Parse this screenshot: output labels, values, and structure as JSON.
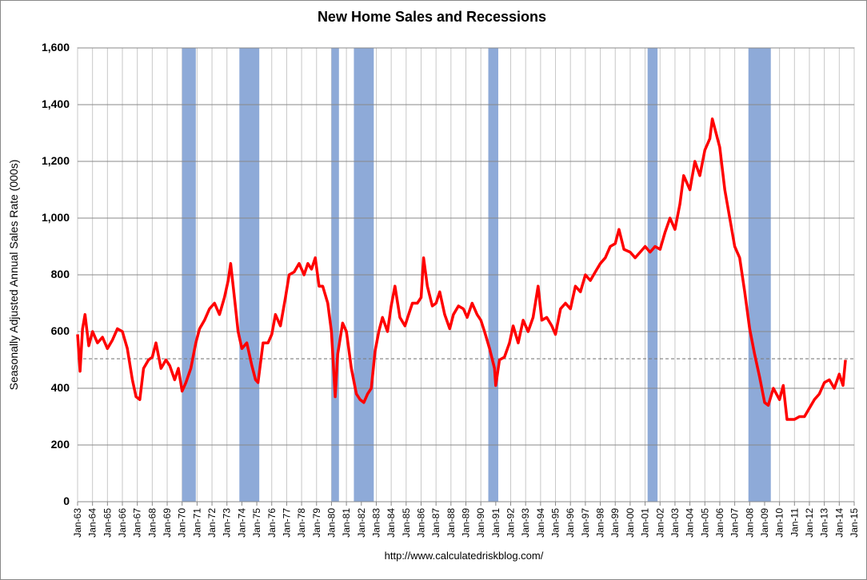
{
  "chart_data": {
    "type": "line",
    "title": "New Home Sales and Recessions",
    "y_label": "Seasonally Adjusted Annual Sales Rate (000s)",
    "source": "http://www.calculatedriskblog.com/",
    "ylim": [
      0,
      1600
    ],
    "yticks": [
      0,
      200,
      400,
      600,
      800,
      {
        "value": 1000,
        "label": "1,000"
      },
      {
        "value": 1200,
        "label": "1,200"
      },
      {
        "value": 1400,
        "label": "1,400"
      },
      {
        "value": 1600,
        "label": "1,600"
      }
    ],
    "xlim": [
      "1963-01",
      "2015-01"
    ],
    "xticks": [
      {
        "value": "1963-01",
        "label": "Jan-63"
      },
      {
        "value": "1964-01",
        "label": "Jan-64"
      },
      {
        "value": "1965-01",
        "label": "Jan-65"
      },
      {
        "value": "1966-01",
        "label": "Jan-66"
      },
      {
        "value": "1967-01",
        "label": "Jan-67"
      },
      {
        "value": "1968-01",
        "label": "Jan-68"
      },
      {
        "value": "1969-01",
        "label": "Jan-69"
      },
      {
        "value": "1970-01",
        "label": "Jan-70"
      },
      {
        "value": "1971-01",
        "label": "Jan-71"
      },
      {
        "value": "1972-01",
        "label": "Jan-72"
      },
      {
        "value": "1973-01",
        "label": "Jan-73"
      },
      {
        "value": "1974-01",
        "label": "Jan-74"
      },
      {
        "value": "1975-01",
        "label": "Jan-75"
      },
      {
        "value": "1976-01",
        "label": "Jan-76"
      },
      {
        "value": "1977-01",
        "label": "Jan-77"
      },
      {
        "value": "1978-01",
        "label": "Jan-78"
      },
      {
        "value": "1979-01",
        "label": "Jan-79"
      },
      {
        "value": "1980-01",
        "label": "Jan-80"
      },
      {
        "value": "1981-01",
        "label": "Jan-81"
      },
      {
        "value": "1982-01",
        "label": "Jan-82"
      },
      {
        "value": "1983-01",
        "label": "Jan-83"
      },
      {
        "value": "1984-01",
        "label": "Jan-84"
      },
      {
        "value": "1985-01",
        "label": "Jan-85"
      },
      {
        "value": "1986-01",
        "label": "Jan-86"
      },
      {
        "value": "1987-01",
        "label": "Jan-87"
      },
      {
        "value": "1988-01",
        "label": "Jan-88"
      },
      {
        "value": "1989-01",
        "label": "Jan-89"
      },
      {
        "value": "1990-01",
        "label": "Jan-90"
      },
      {
        "value": "1991-01",
        "label": "Jan-91"
      },
      {
        "value": "1992-01",
        "label": "Jan-92"
      },
      {
        "value": "1993-01",
        "label": "Jan-93"
      },
      {
        "value": "1994-01",
        "label": "Jan-94"
      },
      {
        "value": "1995-01",
        "label": "Jan-95"
      },
      {
        "value": "1996-01",
        "label": "Jan-96"
      },
      {
        "value": "1997-01",
        "label": "Jan-97"
      },
      {
        "value": "1998-01",
        "label": "Jan-98"
      },
      {
        "value": "1999-01",
        "label": "Jan-99"
      },
      {
        "value": "2000-01",
        "label": "Jan-00"
      },
      {
        "value": "2001-01",
        "label": "Jan-01"
      },
      {
        "value": "2002-01",
        "label": "Jan-02"
      },
      {
        "value": "2003-01",
        "label": "Jan-03"
      },
      {
        "value": "2004-01",
        "label": "Jan-04"
      },
      {
        "value": "2005-01",
        "label": "Jan-05"
      },
      {
        "value": "2006-01",
        "label": "Jan-06"
      },
      {
        "value": "2007-01",
        "label": "Jan-07"
      },
      {
        "value": "2008-01",
        "label": "Jan-08"
      },
      {
        "value": "2009-01",
        "label": "Jan-09"
      },
      {
        "value": "2010-01",
        "label": "Jan-10"
      },
      {
        "value": "2011-01",
        "label": "Jan-11"
      },
      {
        "value": "2012-01",
        "label": "Jan-12"
      },
      {
        "value": "2013-01",
        "label": "Jan-13"
      },
      {
        "value": "2014-01",
        "label": "Jan-14"
      },
      {
        "value": "2015-01",
        "label": "Jan-15"
      }
    ],
    "grid": true,
    "recession_color": "#8eaad8",
    "recessions": [
      [
        "1970-01",
        "1970-12"
      ],
      [
        "1973-11",
        "1975-03"
      ],
      [
        "1980-01",
        "1980-07"
      ],
      [
        "1981-07",
        "1982-11"
      ],
      [
        "1990-07",
        "1991-03"
      ],
      [
        "2001-03",
        "2001-11"
      ],
      [
        "2007-12",
        "2009-06"
      ]
    ],
    "reference_line": {
      "value": 504,
      "color": "#7f7f7f"
    },
    "x": [
      "1963-01",
      "1963-03",
      "1963-05",
      "1963-07",
      "1963-10",
      "1964-01",
      "1964-05",
      "1964-09",
      "1965-01",
      "1965-05",
      "1965-09",
      "1966-01",
      "1966-05",
      "1966-09",
      "1966-12",
      "1967-03",
      "1967-06",
      "1967-10",
      "1968-01",
      "1968-04",
      "1968-08",
      "1968-12",
      "1969-03",
      "1969-07",
      "1969-10",
      "1970-01",
      "1970-04",
      "1970-08",
      "1970-12",
      "1971-03",
      "1971-07",
      "1971-11",
      "1972-03",
      "1972-07",
      "1972-11",
      "1973-02",
      "1973-04",
      "1973-07",
      "1973-10",
      "1974-01",
      "1974-05",
      "1974-09",
      "1974-12",
      "1975-02",
      "1975-06",
      "1975-10",
      "1976-01",
      "1976-04",
      "1976-08",
      "1976-12",
      "1977-03",
      "1977-07",
      "1977-11",
      "1978-03",
      "1978-06",
      "1978-09",
      "1978-12",
      "1979-03",
      "1979-06",
      "1979-10",
      "1980-01",
      "1980-04",
      "1980-06",
      "1980-10",
      "1981-01",
      "1981-05",
      "1981-09",
      "1981-12",
      "1982-03",
      "1982-06",
      "1982-09",
      "1982-12",
      "1983-03",
      "1983-06",
      "1983-10",
      "1984-01",
      "1984-04",
      "1984-08",
      "1984-12",
      "1985-03",
      "1985-06",
      "1985-10",
      "1986-01",
      "1986-03",
      "1986-06",
      "1986-10",
      "1987-01",
      "1987-04",
      "1987-08",
      "1987-12",
      "1988-03",
      "1988-07",
      "1988-11",
      "1989-02",
      "1989-06",
      "1989-10",
      "1990-01",
      "1990-04",
      "1990-08",
      "1990-12",
      "1991-01",
      "1991-04",
      "1991-08",
      "1991-12",
      "1992-03",
      "1992-07",
      "1992-11",
      "1993-03",
      "1993-07",
      "1993-11",
      "1994-02",
      "1994-06",
      "1994-10",
      "1995-01",
      "1995-05",
      "1995-09",
      "1996-01",
      "1996-05",
      "1996-09",
      "1997-01",
      "1997-05",
      "1997-09",
      "1998-01",
      "1998-05",
      "1998-09",
      "1999-01",
      "1999-04",
      "1999-08",
      "2000-01",
      "2000-05",
      "2000-09",
      "2001-01",
      "2001-05",
      "2001-09",
      "2002-01",
      "2002-05",
      "2002-09",
      "2003-01",
      "2003-05",
      "2003-08",
      "2004-01",
      "2004-05",
      "2004-09",
      "2005-01",
      "2005-05",
      "2005-07",
      "2006-01",
      "2006-05",
      "2006-09",
      "2007-01",
      "2007-05",
      "2007-09",
      "2008-01",
      "2008-05",
      "2008-09",
      "2009-01",
      "2009-04",
      "2009-08",
      "2010-01",
      "2010-04",
      "2010-07",
      "2011-01",
      "2011-05",
      "2011-09",
      "2012-01",
      "2012-05",
      "2012-09",
      "2013-01",
      "2013-05",
      "2013-09",
      "2014-01",
      "2014-04",
      "2014-06"
    ],
    "series": [
      {
        "name": "New Home Sales",
        "color": "#ff0000",
        "values": [
          590,
          460,
          610,
          660,
          550,
          600,
          560,
          580,
          540,
          570,
          610,
          600,
          540,
          430,
          370,
          360,
          470,
          500,
          510,
          560,
          470,
          500,
          480,
          430,
          470,
          390,
          420,
          470,
          560,
          610,
          640,
          680,
          700,
          660,
          720,
          780,
          840,
          720,
          600,
          540,
          560,
          480,
          430,
          420,
          560,
          560,
          590,
          660,
          620,
          720,
          800,
          810,
          840,
          800,
          840,
          820,
          860,
          760,
          760,
          700,
          600,
          370,
          520,
          630,
          600,
          470,
          380,
          360,
          350,
          380,
          400,
          530,
          600,
          650,
          600,
          690,
          760,
          650,
          620,
          660,
          700,
          700,
          720,
          860,
          760,
          690,
          700,
          740,
          660,
          610,
          660,
          690,
          680,
          650,
          700,
          660,
          640,
          600,
          540,
          470,
          410,
          500,
          510,
          560,
          620,
          560,
          640,
          600,
          650,
          760,
          640,
          650,
          620,
          590,
          680,
          700,
          680,
          760,
          740,
          800,
          780,
          810,
          840,
          860,
          900,
          910,
          960,
          890,
          880,
          860,
          880,
          900,
          880,
          900,
          890,
          950,
          1000,
          960,
          1050,
          1150,
          1100,
          1200,
          1150,
          1240,
          1280,
          1350,
          1250,
          1100,
          1000,
          900,
          860,
          740,
          610,
          520,
          440,
          350,
          340,
          400,
          360,
          410,
          290,
          290,
          300,
          300,
          330,
          360,
          380,
          420,
          430,
          400,
          450,
          410,
          500
        ]
      }
    ]
  }
}
